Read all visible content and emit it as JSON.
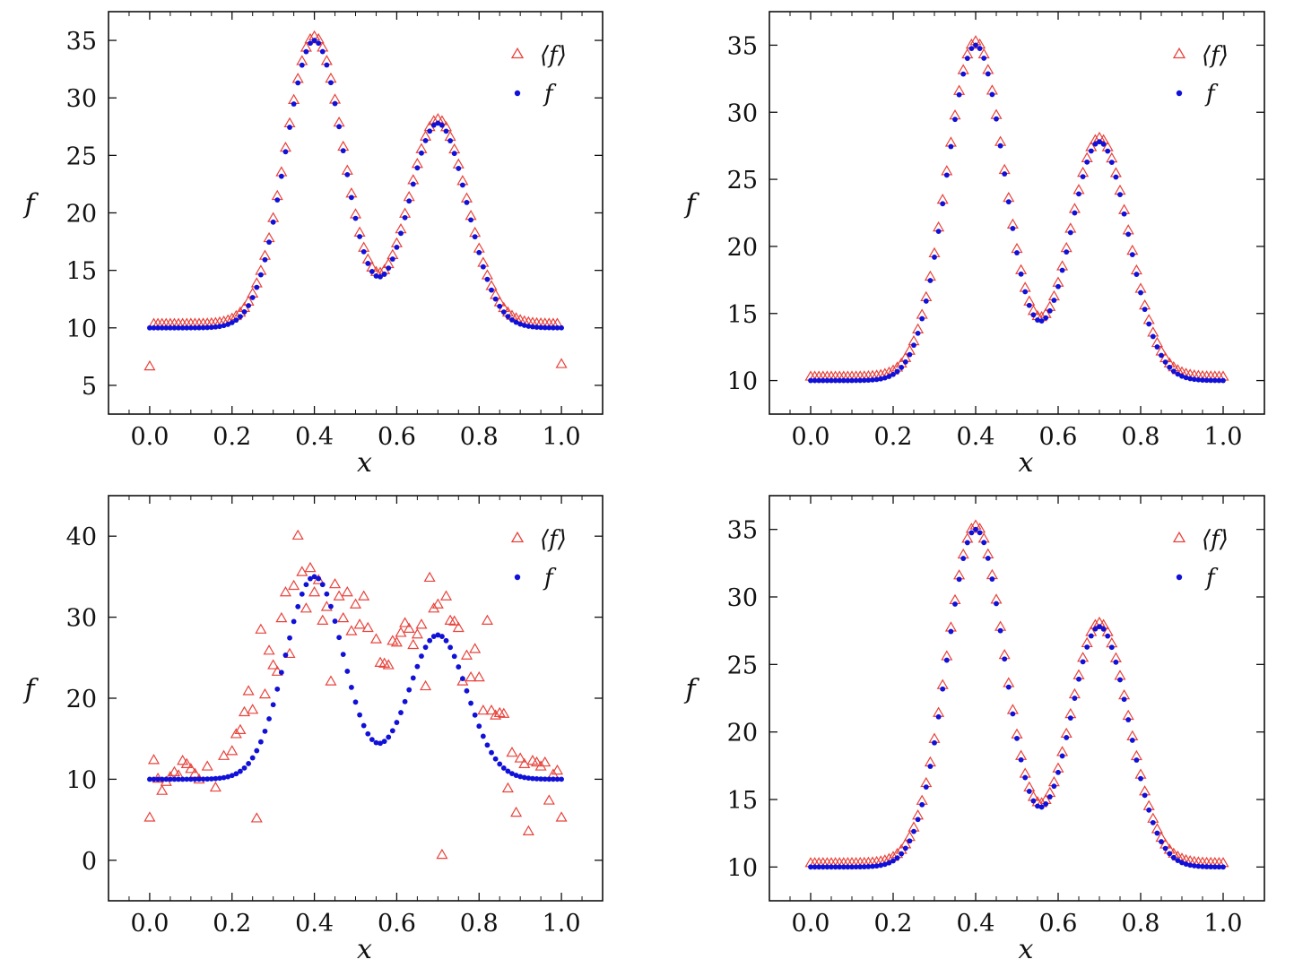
{
  "colors": {
    "avg_marker": "#e8433c",
    "f_marker": "#1010d8",
    "axes": "#111111",
    "background": "#ffffff"
  },
  "chart_data": [
    {
      "type": "scatter",
      "panel": "top-left",
      "xlabel": "x",
      "ylabel": "f",
      "xlim": [
        -0.1,
        1.1
      ],
      "ylim": [
        2.5,
        37.5
      ],
      "xticks": [
        "0.0",
        "0.2",
        "0.4",
        "0.6",
        "0.8",
        "1.0"
      ],
      "yticks": [
        "5",
        "10",
        "15",
        "20",
        "25",
        "30",
        "35"
      ],
      "legend_position": "top-right",
      "series": [
        {
          "name": "⟨f⟩",
          "marker": "open-triangle",
          "model": "smooth_offset",
          "offset": 0.3,
          "endpoints": [
            6.6,
            6.8
          ]
        },
        {
          "name": "f",
          "marker": "filled-circle",
          "model": "smooth"
        }
      ]
    },
    {
      "type": "scatter",
      "panel": "top-right",
      "xlabel": "x",
      "ylabel": "f",
      "xlim": [
        -0.1,
        1.1
      ],
      "ylim": [
        7.5,
        37.5
      ],
      "xticks": [
        "0.0",
        "0.2",
        "0.4",
        "0.6",
        "0.8",
        "1.0"
      ],
      "yticks": [
        "10",
        "15",
        "20",
        "25",
        "30",
        "35"
      ],
      "legend_position": "top-right",
      "series": [
        {
          "name": "⟨f⟩",
          "marker": "open-triangle",
          "model": "smooth_offset",
          "offset": 0.25
        },
        {
          "name": "f",
          "marker": "filled-circle",
          "model": "smooth"
        }
      ]
    },
    {
      "type": "scatter",
      "panel": "bottom-left",
      "xlabel": "x",
      "ylabel": "f",
      "xlim": [
        -0.1,
        1.1
      ],
      "ylim": [
        -5,
        45
      ],
      "xticks": [
        "0.0",
        "0.2",
        "0.4",
        "0.6",
        "0.8",
        "1.0"
      ],
      "yticks": [
        "0",
        "10",
        "20",
        "30",
        "40"
      ],
      "legend_position": "top-right",
      "series": [
        {
          "name": "⟨f⟩",
          "marker": "open-triangle",
          "model": "explicit",
          "x": [
            0.0,
            0.01,
            0.02,
            0.03,
            0.04,
            0.05,
            0.06,
            0.07,
            0.08,
            0.09,
            0.1,
            0.11,
            0.12,
            0.14,
            0.16,
            0.18,
            0.2,
            0.21,
            0.22,
            0.23,
            0.24,
            0.25,
            0.26,
            0.27,
            0.28,
            0.29,
            0.3,
            0.31,
            0.32,
            0.33,
            0.34,
            0.35,
            0.36,
            0.37,
            0.38,
            0.39,
            0.4,
            0.41,
            0.42,
            0.43,
            0.44,
            0.45,
            0.46,
            0.47,
            0.48,
            0.49,
            0.5,
            0.51,
            0.52,
            0.53,
            0.55,
            0.56,
            0.57,
            0.58,
            0.59,
            0.6,
            0.61,
            0.62,
            0.63,
            0.64,
            0.65,
            0.66,
            0.67,
            0.68,
            0.69,
            0.7,
            0.71,
            0.72,
            0.73,
            0.74,
            0.75,
            0.76,
            0.77,
            0.78,
            0.79,
            0.8,
            0.81,
            0.82,
            0.83,
            0.84,
            0.85,
            0.86,
            0.87,
            0.88,
            0.89,
            0.9,
            0.91,
            0.92,
            0.93,
            0.94,
            0.95,
            0.96,
            0.97,
            0.98,
            0.99,
            1.0
          ],
          "y": [
            5.2,
            12.3,
            10.0,
            8.5,
            9.6,
            10.2,
            10.8,
            10.4,
            12.2,
            11.8,
            11.2,
            10.6,
            9.9,
            11.5,
            8.9,
            12.8,
            13.4,
            15.5,
            16.0,
            18.2,
            20.8,
            18.5,
            5.1,
            28.4,
            20.4,
            25.8,
            24.0,
            23.2,
            29.8,
            33.0,
            25.4,
            33.8,
            40.0,
            35.5,
            31.0,
            36.0,
            33.0,
            34.5,
            29.5,
            31.2,
            22.0,
            34.0,
            32.5,
            29.8,
            33.0,
            28.2,
            31.5,
            29.0,
            32.5,
            28.6,
            27.2,
            24.3,
            24.2,
            24.0,
            27.0,
            26.8,
            28.0,
            29.2,
            28.5,
            26.5,
            27.8,
            29.0,
            21.4,
            34.8,
            31.0,
            31.5,
            0.6,
            32.5,
            29.5,
            29.4,
            28.6,
            22.0,
            25.2,
            22.5,
            26.0,
            22.5,
            18.4,
            29.5,
            18.4,
            17.8,
            18.1,
            18.0,
            8.8,
            13.2,
            5.8,
            12.5,
            11.8,
            3.5,
            12.2,
            12.0,
            11.5,
            12.0,
            7.3,
            10.5,
            11.0,
            5.2
          ]
        },
        {
          "name": "f",
          "marker": "filled-circle",
          "model": "smooth"
        }
      ]
    },
    {
      "type": "scatter",
      "panel": "bottom-right",
      "xlabel": "x",
      "ylabel": "f",
      "xlim": [
        -0.1,
        1.1
      ],
      "ylim": [
        7.5,
        37.5
      ],
      "xticks": [
        "0.0",
        "0.2",
        "0.4",
        "0.6",
        "0.8",
        "1.0"
      ],
      "yticks": [
        "10",
        "15",
        "20",
        "25",
        "30",
        "35"
      ],
      "legend_position": "top-right",
      "series": [
        {
          "name": "⟨f⟩",
          "marker": "open-triangle",
          "model": "smooth_offset",
          "offset": 0.25
        },
        {
          "name": "f",
          "marker": "filled-circle",
          "model": "smooth"
        }
      ]
    }
  ]
}
